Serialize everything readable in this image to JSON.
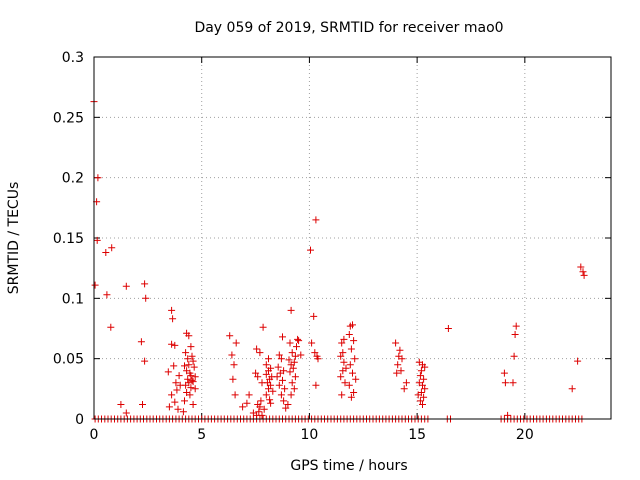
{
  "chart_data": {
    "type": "scatter",
    "title": "Day 059 of 2019, SRMTID for receiver mao0",
    "xlabel": "GPS time / hours",
    "ylabel": "SRMTID / TECUs",
    "xlim": [
      0,
      24
    ],
    "ylim": [
      0,
      0.3
    ],
    "xticks": [
      0,
      5,
      10,
      15,
      20
    ],
    "yticks": [
      0,
      0.05,
      0.1,
      0.15,
      0.2,
      0.25,
      0.3
    ],
    "xtick_labels": [
      "0",
      "5",
      "10",
      "15",
      "20"
    ],
    "ytick_labels": [
      "0",
      "0.05",
      "0.1",
      "0.15",
      "0.2",
      "0.25",
      "0.3"
    ],
    "grid": true,
    "marker": "plus",
    "color": "#dd0000",
    "series": [
      {
        "name": "mao0",
        "points": [
          [
            0.0,
            0.263
          ],
          [
            0.05,
            0.111
          ],
          [
            0.12,
            0.18
          ],
          [
            0.18,
            0.2
          ],
          [
            0.15,
            0.148
          ],
          [
            0.55,
            0.138
          ],
          [
            0.82,
            0.142
          ],
          [
            0.6,
            0.103
          ],
          [
            0.78,
            0.076
          ],
          [
            1.5,
            0.11
          ],
          [
            2.35,
            0.112
          ],
          [
            2.4,
            0.1
          ],
          [
            2.2,
            0.064
          ],
          [
            2.35,
            0.048
          ],
          [
            1.25,
            0.012
          ],
          [
            1.5,
            0.005
          ],
          [
            2.25,
            0.012
          ],
          [
            3.6,
            0.09
          ],
          [
            3.65,
            0.083
          ],
          [
            3.6,
            0.062
          ],
          [
            3.75,
            0.061
          ],
          [
            3.45,
            0.039
          ],
          [
            3.7,
            0.044
          ],
          [
            3.8,
            0.03
          ],
          [
            3.85,
            0.024
          ],
          [
            3.6,
            0.02
          ],
          [
            3.75,
            0.014
          ],
          [
            3.9,
            0.008
          ],
          [
            3.5,
            0.01
          ],
          [
            3.95,
            0.036
          ],
          [
            4.0,
            0.028
          ],
          [
            4.3,
            0.071
          ],
          [
            4.4,
            0.069
          ],
          [
            4.5,
            0.06
          ],
          [
            4.25,
            0.055
          ],
          [
            4.35,
            0.05
          ],
          [
            4.55,
            0.052
          ],
          [
            4.6,
            0.048
          ],
          [
            4.4,
            0.045
          ],
          [
            4.2,
            0.044
          ],
          [
            4.65,
            0.043
          ],
          [
            4.3,
            0.04
          ],
          [
            4.45,
            0.038
          ],
          [
            4.5,
            0.036
          ],
          [
            4.7,
            0.035
          ],
          [
            4.35,
            0.033
          ],
          [
            4.55,
            0.032
          ],
          [
            4.6,
            0.031
          ],
          [
            4.4,
            0.03
          ],
          [
            4.25,
            0.028
          ],
          [
            4.5,
            0.026
          ],
          [
            4.7,
            0.025
          ],
          [
            4.3,
            0.022
          ],
          [
            4.45,
            0.02
          ],
          [
            4.2,
            0.015
          ],
          [
            4.6,
            0.012
          ],
          [
            4.15,
            0.006
          ],
          [
            6.3,
            0.069
          ],
          [
            6.6,
            0.063
          ],
          [
            6.4,
            0.053
          ],
          [
            6.5,
            0.045
          ],
          [
            6.45,
            0.033
          ],
          [
            6.55,
            0.02
          ],
          [
            6.9,
            0.01
          ],
          [
            7.1,
            0.013
          ],
          [
            7.2,
            0.02
          ],
          [
            7.4,
            0.005
          ],
          [
            7.55,
            0.058
          ],
          [
            7.7,
            0.055
          ],
          [
            7.5,
            0.038
          ],
          [
            7.6,
            0.035
          ],
          [
            7.8,
            0.03
          ],
          [
            7.85,
            0.076
          ],
          [
            7.7,
            0.01
          ],
          [
            7.6,
            0.012
          ],
          [
            7.75,
            0.015
          ],
          [
            7.9,
            0.008
          ],
          [
            7.8,
            0.003
          ],
          [
            7.55,
            0.003
          ],
          [
            7.65,
            0.006
          ],
          [
            8.1,
            0.05
          ],
          [
            8.0,
            0.045
          ],
          [
            8.2,
            0.042
          ],
          [
            8.1,
            0.04
          ],
          [
            8.0,
            0.037
          ],
          [
            8.25,
            0.035
          ],
          [
            8.15,
            0.033
          ],
          [
            8.05,
            0.03
          ],
          [
            8.2,
            0.028
          ],
          [
            8.1,
            0.025
          ],
          [
            8.3,
            0.023
          ],
          [
            8.0,
            0.02
          ],
          [
            8.15,
            0.016
          ],
          [
            8.2,
            0.013
          ],
          [
            8.6,
            0.053
          ],
          [
            8.7,
            0.05
          ],
          [
            8.55,
            0.043
          ],
          [
            8.8,
            0.04
          ],
          [
            8.65,
            0.038
          ],
          [
            8.5,
            0.035
          ],
          [
            8.75,
            0.032
          ],
          [
            8.6,
            0.028
          ],
          [
            8.85,
            0.025
          ],
          [
            8.7,
            0.02
          ],
          [
            8.8,
            0.015
          ],
          [
            8.75,
            0.068
          ],
          [
            8.9,
            0.009
          ],
          [
            9.15,
            0.09
          ],
          [
            9.1,
            0.063
          ],
          [
            9.2,
            0.055
          ],
          [
            9.35,
            0.052
          ],
          [
            9.05,
            0.049
          ],
          [
            9.3,
            0.047
          ],
          [
            9.15,
            0.045
          ],
          [
            9.25,
            0.042
          ],
          [
            9.1,
            0.039
          ],
          [
            9.35,
            0.035
          ],
          [
            9.2,
            0.03
          ],
          [
            9.3,
            0.025
          ],
          [
            9.15,
            0.02
          ],
          [
            9.45,
            0.066
          ],
          [
            9.5,
            0.065
          ],
          [
            9.0,
            0.012
          ],
          [
            9.4,
            0.06
          ],
          [
            9.6,
            0.053
          ],
          [
            10.05,
            0.14
          ],
          [
            10.3,
            0.165
          ],
          [
            10.2,
            0.085
          ],
          [
            10.1,
            0.063
          ],
          [
            10.25,
            0.055
          ],
          [
            10.35,
            0.052
          ],
          [
            10.4,
            0.05
          ],
          [
            10.3,
            0.028
          ],
          [
            11.5,
            0.063
          ],
          [
            11.6,
            0.066
          ],
          [
            11.55,
            0.055
          ],
          [
            11.45,
            0.052
          ],
          [
            11.6,
            0.047
          ],
          [
            11.7,
            0.042
          ],
          [
            11.55,
            0.04
          ],
          [
            11.45,
            0.035
          ],
          [
            11.65,
            0.03
          ],
          [
            11.5,
            0.02
          ],
          [
            11.9,
            0.077
          ],
          [
            12.0,
            0.078
          ],
          [
            11.85,
            0.07
          ],
          [
            12.05,
            0.065
          ],
          [
            11.95,
            0.058
          ],
          [
            12.1,
            0.05
          ],
          [
            11.9,
            0.045
          ],
          [
            12.0,
            0.038
          ],
          [
            12.15,
            0.033
          ],
          [
            11.85,
            0.028
          ],
          [
            12.05,
            0.022
          ],
          [
            11.95,
            0.018
          ],
          [
            14.0,
            0.063
          ],
          [
            14.2,
            0.057
          ],
          [
            14.15,
            0.052
          ],
          [
            14.3,
            0.05
          ],
          [
            14.1,
            0.045
          ],
          [
            14.25,
            0.04
          ],
          [
            14.05,
            0.038
          ],
          [
            14.5,
            0.03
          ],
          [
            14.4,
            0.025
          ],
          [
            15.1,
            0.047
          ],
          [
            15.25,
            0.045
          ],
          [
            15.35,
            0.043
          ],
          [
            15.2,
            0.04
          ],
          [
            15.15,
            0.036
          ],
          [
            15.3,
            0.033
          ],
          [
            15.1,
            0.03
          ],
          [
            15.25,
            0.028
          ],
          [
            15.35,
            0.025
          ],
          [
            15.2,
            0.022
          ],
          [
            15.05,
            0.02
          ],
          [
            15.3,
            0.018
          ],
          [
            15.15,
            0.015
          ],
          [
            15.25,
            0.012
          ],
          [
            16.45,
            0.075
          ],
          [
            19.05,
            0.038
          ],
          [
            19.1,
            0.03
          ],
          [
            19.5,
            0.052
          ],
          [
            19.55,
            0.07
          ],
          [
            19.6,
            0.077
          ],
          [
            19.45,
            0.03
          ],
          [
            19.2,
            0.003
          ],
          [
            22.2,
            0.025
          ],
          [
            22.45,
            0.048
          ],
          [
            22.6,
            0.126
          ],
          [
            22.7,
            0.122
          ],
          [
            22.75,
            0.119
          ]
        ],
        "baseline_x": [
          0.05,
          0.2,
          0.35,
          0.5,
          0.65,
          0.8,
          0.95,
          1.1,
          1.25,
          1.4,
          1.55,
          1.7,
          1.85,
          2.0,
          2.15,
          2.3,
          2.45,
          2.6,
          2.75,
          2.9,
          3.05,
          3.2,
          3.35,
          3.5,
          3.65,
          3.8,
          3.95,
          4.1,
          4.25,
          4.4,
          4.55,
          4.7,
          4.85,
          5.0,
          5.15,
          5.3,
          5.45,
          5.6,
          5.75,
          5.9,
          6.05,
          6.2,
          6.35,
          6.5,
          6.65,
          6.8,
          6.95,
          7.1,
          7.25,
          7.4,
          7.55,
          7.7,
          7.85,
          8.0,
          8.15,
          8.3,
          8.45,
          8.6,
          8.75,
          8.9,
          9.05,
          9.2,
          9.35,
          9.5,
          9.65,
          9.8,
          9.95,
          10.1,
          10.25,
          10.4,
          10.55,
          10.7,
          10.85,
          11.0,
          11.15,
          11.3,
          11.45,
          11.6,
          11.75,
          11.9,
          12.05,
          12.2,
          12.35,
          12.5,
          12.65,
          12.8,
          12.95,
          13.1,
          13.25,
          13.4,
          13.55,
          13.7,
          13.85,
          14.0,
          14.15,
          14.3,
          14.45,
          14.6,
          14.75,
          14.9,
          15.05,
          15.2,
          15.35,
          15.5,
          16.4,
          16.55,
          18.9,
          19.05,
          19.2,
          19.35,
          19.5,
          19.65,
          19.8,
          19.95,
          20.1,
          20.25,
          20.4,
          20.55,
          20.7,
          20.85,
          21.0,
          21.15,
          21.3,
          21.45,
          21.6,
          21.75,
          21.9,
          22.05,
          22.2,
          22.35,
          22.5,
          22.65
        ]
      }
    ]
  }
}
